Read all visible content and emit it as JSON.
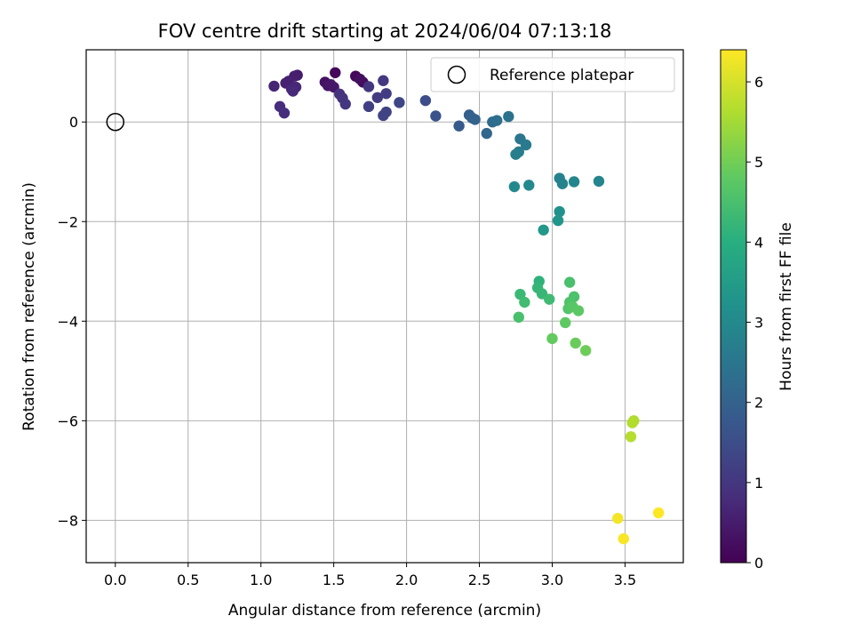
{
  "chart_data": {
    "type": "scatter",
    "title": "FOV centre drift starting at 2024/06/04 07:13:18",
    "xlabel": "Angular distance from reference (arcmin)",
    "ylabel": "Rotation from reference (arcmin)",
    "xlim": [
      -0.2,
      3.9
    ],
    "ylim": [
      -8.85,
      1.45
    ],
    "xticks": [
      0.0,
      0.5,
      1.0,
      1.5,
      2.0,
      2.5,
      3.0,
      3.5
    ],
    "xtick_labels": [
      "0.0",
      "0.5",
      "1.0",
      "1.5",
      "2.0",
      "2.5",
      "3.0",
      "3.5"
    ],
    "yticks": [
      0,
      -2,
      -4,
      -6,
      -8
    ],
    "ytick_labels": [
      "0",
      "−2",
      "−4",
      "−6",
      "−8"
    ],
    "grid": true,
    "legend": {
      "position": "top-right",
      "entries": [
        "Reference platepar"
      ]
    },
    "reference_point": {
      "x": 0.0,
      "y": 0.0
    },
    "colorbar": {
      "label": "Hours from first FF file",
      "range": [
        0,
        6.4
      ],
      "ticks": [
        0,
        1,
        2,
        3,
        4,
        5,
        6
      ],
      "tick_labels": [
        "0",
        "1",
        "2",
        "3",
        "4",
        "5",
        "6"
      ],
      "colormap": "viridis"
    },
    "points": [
      {
        "x": 1.51,
        "y": 0.99,
        "c": 0.1
      },
      {
        "x": 1.65,
        "y": 0.92,
        "c": 0.1
      },
      {
        "x": 1.7,
        "y": 0.8,
        "c": 0.2
      },
      {
        "x": 1.68,
        "y": 0.86,
        "c": 0.25
      },
      {
        "x": 1.44,
        "y": 0.8,
        "c": 0.3
      },
      {
        "x": 1.46,
        "y": 0.73,
        "c": 0.35
      },
      {
        "x": 1.5,
        "y": 0.7,
        "c": 0.4
      },
      {
        "x": 1.48,
        "y": 0.75,
        "c": 0.4
      },
      {
        "x": 1.25,
        "y": 0.94,
        "c": 0.5
      },
      {
        "x": 1.23,
        "y": 0.92,
        "c": 0.55
      },
      {
        "x": 1.19,
        "y": 0.82,
        "c": 0.6
      },
      {
        "x": 1.17,
        "y": 0.78,
        "c": 0.6
      },
      {
        "x": 1.09,
        "y": 0.72,
        "c": 0.65
      },
      {
        "x": 1.21,
        "y": 0.66,
        "c": 0.7
      },
      {
        "x": 1.24,
        "y": 0.7,
        "c": 0.7
      },
      {
        "x": 1.22,
        "y": 0.62,
        "c": 0.75
      },
      {
        "x": 1.13,
        "y": 0.31,
        "c": 0.8
      },
      {
        "x": 1.16,
        "y": 0.18,
        "c": 0.85
      },
      {
        "x": 1.54,
        "y": 0.56,
        "c": 0.9
      },
      {
        "x": 1.56,
        "y": 0.48,
        "c": 0.95
      },
      {
        "x": 1.58,
        "y": 0.36,
        "c": 1.0
      },
      {
        "x": 1.74,
        "y": 0.71,
        "c": 1.0
      },
      {
        "x": 1.84,
        "y": 0.83,
        "c": 1.05
      },
      {
        "x": 1.8,
        "y": 0.49,
        "c": 1.1
      },
      {
        "x": 1.86,
        "y": 0.57,
        "c": 1.15
      },
      {
        "x": 1.74,
        "y": 0.31,
        "c": 1.2
      },
      {
        "x": 1.86,
        "y": 0.2,
        "c": 1.25
      },
      {
        "x": 1.84,
        "y": 0.13,
        "c": 1.3
      },
      {
        "x": 1.95,
        "y": 0.39,
        "c": 1.35
      },
      {
        "x": 2.13,
        "y": 0.43,
        "c": 1.5
      },
      {
        "x": 2.2,
        "y": 0.12,
        "c": 1.6
      },
      {
        "x": 2.36,
        "y": -0.08,
        "c": 1.8
      },
      {
        "x": 2.43,
        "y": 0.14,
        "c": 1.9
      },
      {
        "x": 2.47,
        "y": 0.05,
        "c": 2.0
      },
      {
        "x": 2.45,
        "y": 0.08,
        "c": 2.0
      },
      {
        "x": 2.55,
        "y": -0.23,
        "c": 2.1
      },
      {
        "x": 2.59,
        "y": 0.0,
        "c": 2.2
      },
      {
        "x": 2.62,
        "y": 0.03,
        "c": 2.3
      },
      {
        "x": 2.7,
        "y": 0.11,
        "c": 2.4
      },
      {
        "x": 2.78,
        "y": -0.34,
        "c": 2.5
      },
      {
        "x": 2.82,
        "y": -0.46,
        "c": 2.6
      },
      {
        "x": 2.77,
        "y": -0.6,
        "c": 2.65
      },
      {
        "x": 2.75,
        "y": -0.65,
        "c": 2.7
      },
      {
        "x": 3.05,
        "y": -1.13,
        "c": 2.8
      },
      {
        "x": 3.07,
        "y": -1.24,
        "c": 2.85
      },
      {
        "x": 3.15,
        "y": -1.2,
        "c": 2.9
      },
      {
        "x": 3.32,
        "y": -1.19,
        "c": 2.9
      },
      {
        "x": 2.74,
        "y": -1.3,
        "c": 3.0
      },
      {
        "x": 2.84,
        "y": -1.27,
        "c": 3.0
      },
      {
        "x": 3.05,
        "y": -1.8,
        "c": 3.2
      },
      {
        "x": 3.04,
        "y": -1.98,
        "c": 3.3
      },
      {
        "x": 2.94,
        "y": -2.17,
        "c": 3.4
      },
      {
        "x": 2.91,
        "y": -3.2,
        "c": 4.1
      },
      {
        "x": 2.9,
        "y": -3.33,
        "c": 4.2
      },
      {
        "x": 2.93,
        "y": -3.45,
        "c": 4.25
      },
      {
        "x": 2.78,
        "y": -3.46,
        "c": 4.3
      },
      {
        "x": 2.98,
        "y": -3.56,
        "c": 4.35
      },
      {
        "x": 2.81,
        "y": -3.62,
        "c": 4.4
      },
      {
        "x": 2.77,
        "y": -3.92,
        "c": 4.5
      },
      {
        "x": 3.12,
        "y": -3.22,
        "c": 4.5
      },
      {
        "x": 3.15,
        "y": -3.51,
        "c": 4.55
      },
      {
        "x": 3.12,
        "y": -3.62,
        "c": 4.6
      },
      {
        "x": 3.11,
        "y": -3.75,
        "c": 4.65
      },
      {
        "x": 3.14,
        "y": -3.71,
        "c": 4.7
      },
      {
        "x": 3.18,
        "y": -3.79,
        "c": 4.75
      },
      {
        "x": 3.09,
        "y": -4.03,
        "c": 4.8
      },
      {
        "x": 3.0,
        "y": -4.35,
        "c": 4.85
      },
      {
        "x": 3.16,
        "y": -4.44,
        "c": 4.9
      },
      {
        "x": 3.23,
        "y": -4.59,
        "c": 4.95
      },
      {
        "x": 3.56,
        "y": -6.0,
        "c": 5.6
      },
      {
        "x": 3.55,
        "y": -6.04,
        "c": 5.65
      },
      {
        "x": 3.54,
        "y": -6.32,
        "c": 5.7
      },
      {
        "x": 3.45,
        "y": -7.96,
        "c": 6.3
      },
      {
        "x": 3.49,
        "y": -8.37,
        "c": 6.35
      },
      {
        "x": 3.73,
        "y": -7.85,
        "c": 6.4
      }
    ]
  }
}
